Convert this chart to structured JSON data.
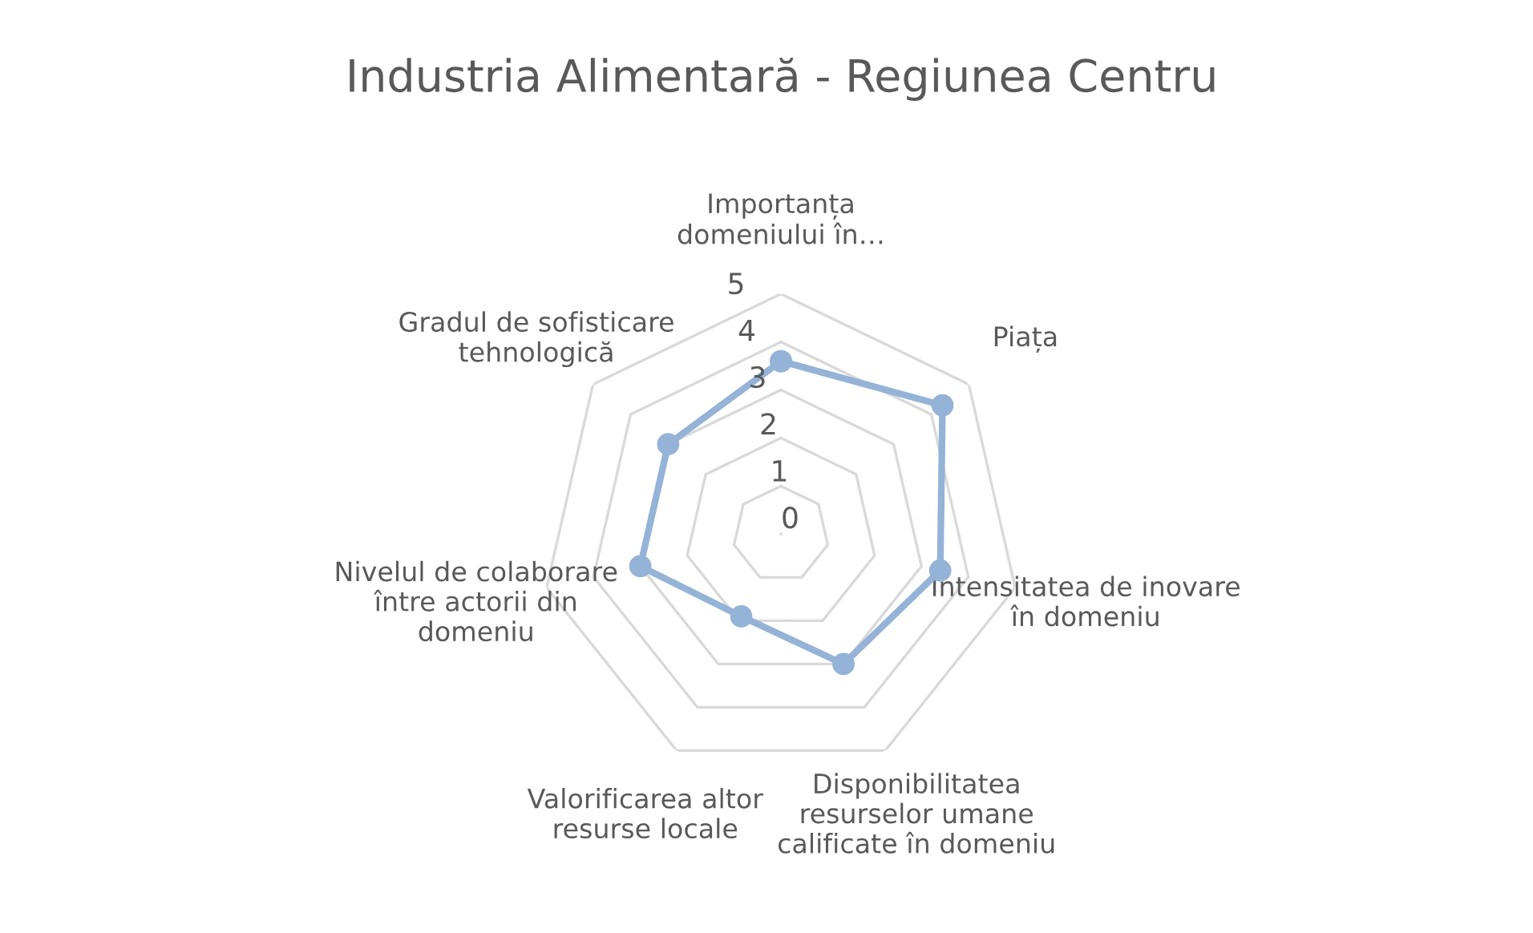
{
  "chart_data": {
    "type": "radar",
    "title": "Industria Alimentară - Regiunea Centru",
    "categories": [
      "Importanța\ndomeniului în…",
      "Piața",
      "Intensitatea de inovare\nîn domeniu",
      "Disponibilitatea\nresurselor umane\ncalificate în domeniu",
      "Valorificarea altor\nresurse locale",
      "Nivelul de colaborare\nîntre actorii din\ndomeniu",
      "Gradul de sofisticare\ntehnologică"
    ],
    "series": [
      {
        "color": "#95b3d7",
        "values": [
          3.6,
          4.3,
          3.4,
          3.0,
          1.9,
          3.0,
          3.0
        ]
      }
    ],
    "ylim": [
      0,
      5
    ],
    "yticks": [
      0,
      1,
      2,
      3,
      4,
      5
    ],
    "grid": true,
    "marker": "circle"
  }
}
